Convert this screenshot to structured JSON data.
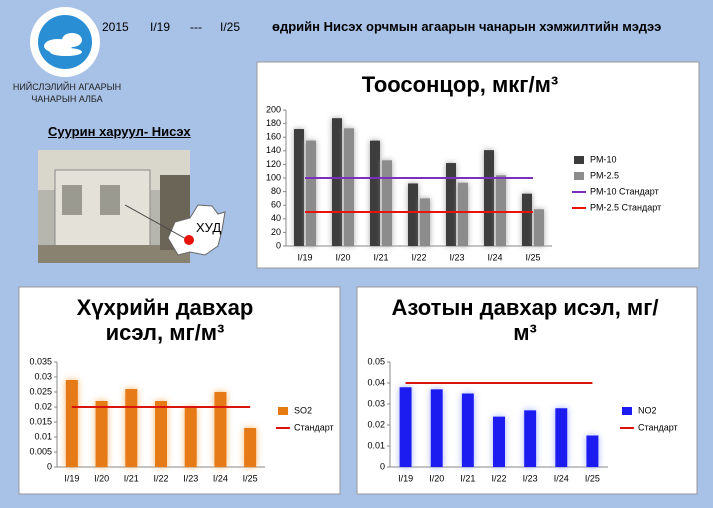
{
  "header": {
    "year": "2015",
    "date_from": "I/19",
    "separator": "---",
    "date_to": "I/25",
    "heading": "өдрийн Нисэх орчмын агаарын чанарын хэмжилтийн мэдээ",
    "org_line1": "НИЙСЛЭЛИЙН АГААРЫН",
    "org_line2": "ЧАНАРЫН АЛБА",
    "station": "Суурин харуул- Нисэх",
    "map_label": "ХУД"
  },
  "chart_data": [
    {
      "type": "bar",
      "title": "Тоосонцор, мкг/м³",
      "categories": [
        "I/19",
        "I/20",
        "I/21",
        "I/22",
        "I/23",
        "I/24",
        "I/25"
      ],
      "ylim": [
        0,
        200
      ],
      "yticks": [
        0,
        20,
        40,
        60,
        80,
        100,
        120,
        140,
        160,
        180,
        200
      ],
      "series": [
        {
          "name": "PM-10",
          "color": "#3c3c3c",
          "values": [
            172,
            188,
            155,
            92,
            122,
            141,
            77
          ]
        },
        {
          "name": "PM-2.5",
          "color": "#8c8c8c",
          "values": [
            155,
            173,
            126,
            70,
            93,
            104,
            54
          ]
        },
        {
          "name": "PM-10 Стандарт",
          "color": "#7b2fbe",
          "type": "line",
          "values": [
            100,
            100,
            100,
            100,
            100,
            100,
            100
          ]
        },
        {
          "name": "PM-2.5 Стандарт",
          "color": "#e8140c",
          "type": "line",
          "values": [
            50,
            50,
            50,
            50,
            50,
            50,
            50
          ]
        }
      ]
    },
    {
      "type": "bar",
      "title": "Хүхрийн давхар исэл, мг/м³",
      "categories": [
        "I/19",
        "I/20",
        "I/21",
        "I/22",
        "I/23",
        "I/24",
        "I/25"
      ],
      "ylim": [
        0,
        0.035
      ],
      "yticks": [
        0,
        0.005,
        0.01,
        0.015,
        0.02,
        0.025,
        0.03,
        0.035
      ],
      "series": [
        {
          "name": "SO2",
          "color": "#e57a12",
          "values": [
            0.029,
            0.022,
            0.026,
            0.022,
            0.02,
            0.025,
            0.013
          ]
        },
        {
          "name": "Стандарт",
          "color": "#d8140c",
          "type": "line",
          "values": [
            0.02,
            0.02,
            0.02,
            0.02,
            0.02,
            0.02,
            0.02
          ]
        }
      ]
    },
    {
      "type": "bar",
      "title": "Азотын давхар исэл, мг/м³",
      "categories": [
        "I/19",
        "I/20",
        "I/21",
        "I/22",
        "I/23",
        "I/24",
        "I/25"
      ],
      "ylim": [
        0,
        0.05
      ],
      "yticks": [
        0,
        0.01,
        0.02,
        0.03,
        0.04,
        0.05
      ],
      "series": [
        {
          "name": "NO2",
          "color": "#1c1cf0",
          "values": [
            0.038,
            0.037,
            0.035,
            0.024,
            0.027,
            0.028,
            0.015
          ]
        },
        {
          "name": "Стандарт",
          "color": "#d8140c",
          "type": "line",
          "values": [
            0.04,
            0.04,
            0.04,
            0.04,
            0.04,
            0.04,
            0.04
          ]
        }
      ]
    }
  ]
}
